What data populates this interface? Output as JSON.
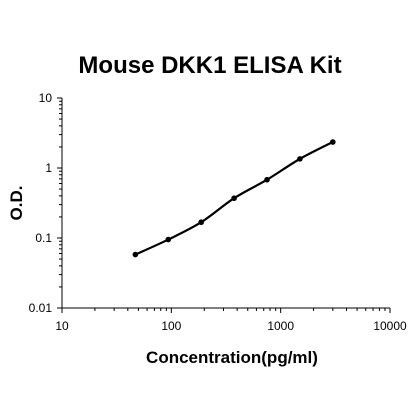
{
  "chart_data": {
    "type": "scatter",
    "title": "Mouse DKK1 ELISA Kit",
    "xlabel": "Concentration(pg/ml)",
    "ylabel": "O.D.",
    "x_scale": "log",
    "y_scale": "log",
    "xlim": [
      10,
      10000
    ],
    "ylim": [
      0.01,
      10
    ],
    "x_ticks": [
      "10",
      "100",
      "1000",
      "10000"
    ],
    "y_ticks": [
      "10",
      "1",
      "0.1",
      "0.01"
    ],
    "grid": false,
    "legend": "none",
    "series": [
      {
        "x": [
          46.875,
          93.75,
          187.5,
          375,
          750,
          1500,
          3000
        ],
        "y": [
          0.058,
          0.095,
          0.168,
          0.37,
          0.68,
          1.35,
          2.35
        ],
        "color": "#000000",
        "trendline": true
      }
    ]
  }
}
